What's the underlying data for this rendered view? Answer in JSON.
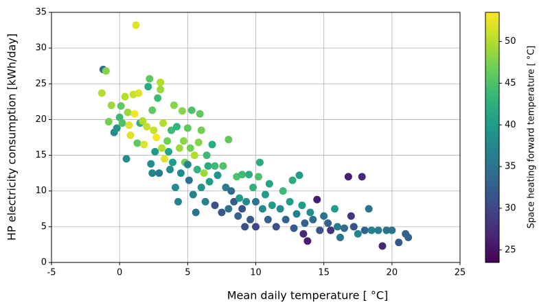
{
  "chart_data": {
    "type": "scatter",
    "xlabel": "Mean daily temperature [ °C]",
    "ylabel": "HP electricity consumption [kWh/day]",
    "xlim": [
      -5,
      25
    ],
    "xticks": [
      -5,
      0,
      5,
      10,
      15,
      20,
      25
    ],
    "ylim": [
      0,
      35
    ],
    "yticks": [
      0,
      5,
      10,
      15,
      20,
      25,
      30,
      35
    ],
    "grid": true,
    "colormap": "viridis",
    "colorbar": {
      "label": "Space heating forward temperature [ °C]",
      "lim": [
        23.5,
        53.5
      ],
      "ticks": [
        25,
        30,
        35,
        40,
        45,
        50
      ]
    },
    "x": [
      -1.3,
      -1.2,
      -1,
      -0.8,
      -0.6,
      -0.4,
      -0.2,
      0,
      0.1,
      0.2,
      0.4,
      0.5,
      0.6,
      0.7,
      0.8,
      1,
      1.1,
      1.2,
      1.3,
      1.4,
      1.5,
      1.7,
      1.8,
      2,
      2.1,
      2.2,
      2.3,
      2.4,
      2.4,
      2.5,
      2.6,
      2.7,
      2.8,
      2.9,
      3,
      3,
      3.1,
      3.2,
      3.3,
      3.5,
      3.6,
      3.7,
      3.8,
      3.9,
      4,
      4.1,
      4.2,
      4.3,
      4.4,
      4.5,
      4.6,
      4.7,
      4.8,
      5,
      5,
      5.1,
      5.2,
      5.3,
      5.4,
      5.5,
      5.6,
      5.7,
      5.8,
      5.9,
      6,
      6,
      6.2,
      6.3,
      6.4,
      6.5,
      6.6,
      6.8,
      7,
      7,
      7.2,
      7.5,
      7.6,
      7.8,
      8,
      8,
      8.2,
      8.4,
      8.6,
      8.7,
      8.8,
      9,
      9,
      9.2,
      9.3,
      9.5,
      9.6,
      9.8,
      10,
      10,
      10.2,
      10.3,
      10.5,
      10.7,
      10.9,
      11,
      11.2,
      11.5,
      11.8,
      12,
      12.2,
      12.5,
      12.7,
      12.8,
      13,
      13.2,
      13.4,
      13.5,
      13.6,
      13.8,
      14,
      14.2,
      14.5,
      14.7,
      15,
      15.3,
      15.5,
      15.8,
      16,
      16.2,
      16.5,
      16.8,
      17,
      17.2,
      17.5,
      17.8,
      18,
      18.3,
      18.5,
      19,
      19.3,
      19.6,
      20,
      20.5,
      21,
      21.2
    ],
    "values": [
      23.7,
      27,
      26.8,
      19.7,
      22,
      18.2,
      18.8,
      20.3,
      21.9,
      19.5,
      23.2,
      14.5,
      21,
      19.2,
      17.8,
      23.5,
      20.8,
      33.2,
      16.7,
      23.7,
      19.5,
      19.8,
      16.5,
      19,
      24.6,
      25.7,
      13.8,
      12.5,
      21.3,
      18.5,
      15.5,
      17.5,
      23,
      12.5,
      25.2,
      24.2,
      16,
      19.5,
      14.5,
      17,
      15.5,
      13,
      18.5,
      14,
      22,
      10.5,
      19,
      8.5,
      16,
      12.5,
      21.2,
      17,
      14,
      18.8,
      13.7,
      11.5,
      16,
      21.3,
      9.5,
      15,
      7,
      13,
      16.8,
      20.8,
      18.5,
      10.5,
      12.5,
      8.5,
      15,
      13.5,
      11.3,
      16.5,
      8,
      13.5,
      12.2,
      7,
      13.5,
      10.5,
      7.5,
      17.2,
      10,
      8.5,
      12,
      6.5,
      9,
      12.3,
      7.5,
      5,
      8.5,
      12.3,
      6,
      10.5,
      8.5,
      5,
      12,
      14,
      7.5,
      9.5,
      6,
      11,
      8,
      5,
      7.5,
      10,
      6,
      8.5,
      11.5,
      4.8,
      6.8,
      12.2,
      8,
      4,
      5.5,
      3,
      7,
      6,
      8.8,
      4.5,
      6.5,
      5.5,
      4.5,
      7.5,
      5,
      3.5,
      4.8,
      12,
      6.5,
      5,
      4,
      12,
      4.5,
      7.5,
      4.5,
      4.5,
      2.3,
      4.5,
      4.5,
      2.8,
      4,
      3.5
    ],
    "color_values": [
      50,
      35,
      48,
      47,
      49,
      38,
      39,
      44,
      46,
      45,
      50,
      38,
      49,
      52,
      52,
      51,
      53,
      52,
      46,
      52,
      43,
      50,
      52,
      51,
      42,
      46,
      38,
      37,
      46,
      51,
      40,
      53,
      44,
      36,
      50,
      49,
      50,
      50,
      52,
      47,
      41,
      38,
      44,
      40,
      48,
      38,
      43,
      37,
      49,
      38,
      48,
      48,
      47,
      46,
      37,
      35,
      47,
      45,
      37,
      50,
      35,
      43,
      48,
      46,
      47,
      39,
      49,
      37,
      44,
      42,
      40,
      42,
      31,
      44,
      39,
      32,
      45,
      36,
      35,
      46,
      34,
      32,
      45,
      33,
      40,
      44,
      31,
      31,
      38,
      42,
      32,
      43,
      35,
      30,
      45,
      42,
      38,
      40,
      33,
      41,
      40,
      31,
      38,
      44,
      33,
      40,
      42,
      32,
      37,
      40,
      40,
      27,
      33,
      26,
      38,
      34,
      26,
      31,
      35,
      33,
      28,
      40,
      36,
      35,
      34,
      26,
      28,
      31,
      37,
      27,
      33,
      35,
      37,
      36,
      27,
      35,
      35,
      32,
      33,
      33
    ]
  }
}
